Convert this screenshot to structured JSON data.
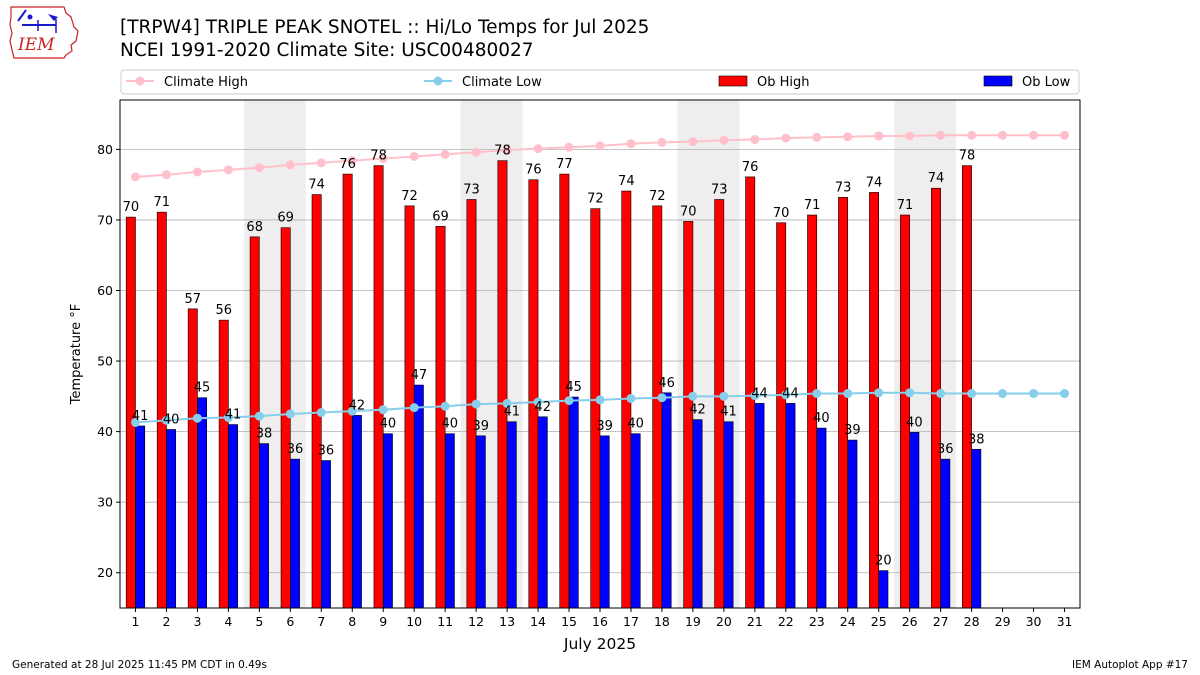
{
  "header": {
    "title_line1": "[TRPW4] TRIPLE PEAK SNOTEL :: Hi/Lo Temps for Jul 2025",
    "title_line2": "NCEI 1991-2020 Climate Site: USC00480027",
    "logo_text": "IEM"
  },
  "footer": {
    "generated": "Generated at 28 Jul 2025 11:45 PM CDT in 0.49s",
    "app": "IEM Autoplot App #17"
  },
  "colors": {
    "climate_high": "#ffc0cb",
    "climate_low": "#87ceeb",
    "ob_high": "#ff0000",
    "ob_low": "#0000ff",
    "weekend_shade": "#eeeeee",
    "grid": "#b0b0b0",
    "logo_red": "#cc2222",
    "logo_blue": "#1a1acc"
  },
  "chart_data": {
    "type": "bar",
    "xlabel": "July 2025",
    "ylabel": "Temperature °F",
    "ylim": [
      15,
      87
    ],
    "yticks": [
      20,
      30,
      40,
      50,
      60,
      70,
      80
    ],
    "grid": "horizontal",
    "legend_position": "top",
    "days": [
      1,
      2,
      3,
      4,
      5,
      6,
      7,
      8,
      9,
      10,
      11,
      12,
      13,
      14,
      15,
      16,
      17,
      18,
      19,
      20,
      21,
      22,
      23,
      24,
      25,
      26,
      27,
      28,
      29,
      30,
      31
    ],
    "shaded_day_ranges": [
      [
        5,
        6
      ],
      [
        12,
        13
      ],
      [
        19,
        20
      ],
      [
        26,
        27
      ]
    ],
    "series": [
      {
        "name": "Ob High",
        "kind": "bar",
        "values": [
          70.4,
          71.1,
          57.4,
          55.8,
          67.6,
          68.9,
          73.6,
          76.5,
          77.7,
          72.0,
          69.1,
          72.9,
          78.4,
          75.7,
          76.5,
          71.6,
          74.1,
          72.0,
          69.8,
          72.9,
          76.1,
          69.6,
          70.7,
          73.2,
          73.9,
          70.7,
          74.5,
          77.7
        ],
        "labels": [
          "70",
          "71",
          "57",
          "56",
          "68",
          "69",
          "74",
          "76",
          "78",
          "72",
          "69",
          "73",
          "78",
          "76",
          "77",
          "72",
          "74",
          "72",
          "70",
          "73",
          "76",
          "70",
          "71",
          "73",
          "74",
          "71",
          "74",
          "78"
        ]
      },
      {
        "name": "Ob Low",
        "kind": "bar",
        "values": [
          40.8,
          40.3,
          44.8,
          41.0,
          38.3,
          36.1,
          35.9,
          42.3,
          39.7,
          46.6,
          39.7,
          39.4,
          41.4,
          42.1,
          44.9,
          39.4,
          39.7,
          45.5,
          41.7,
          41.4,
          44.0,
          44.0,
          40.5,
          38.8,
          20.3,
          39.9,
          36.1,
          37.5
        ],
        "labels": [
          "41",
          "40",
          "45",
          "41",
          "38",
          "36",
          "36",
          "42",
          "40",
          "47",
          "40",
          "39",
          "41",
          "42",
          "45",
          "39",
          "40",
          "46",
          "42",
          "41",
          "44",
          "44",
          "40",
          "39",
          "20",
          "40",
          "36",
          "38"
        ]
      },
      {
        "name": "Climate High",
        "kind": "line",
        "values": [
          76.1,
          76.4,
          76.8,
          77.1,
          77.4,
          77.8,
          78.1,
          78.4,
          78.7,
          79.0,
          79.3,
          79.6,
          79.9,
          80.1,
          80.3,
          80.5,
          80.8,
          81.0,
          81.1,
          81.3,
          81.4,
          81.6,
          81.7,
          81.8,
          81.9,
          81.9,
          82.0,
          82.0,
          82.0,
          82.0,
          82.0
        ]
      },
      {
        "name": "Climate Low",
        "kind": "line",
        "values": [
          41.3,
          41.6,
          41.9,
          42.0,
          42.2,
          42.5,
          42.7,
          42.9,
          43.1,
          43.4,
          43.6,
          43.9,
          44.0,
          44.2,
          44.4,
          44.5,
          44.7,
          44.8,
          45.0,
          45.0,
          45.1,
          45.2,
          45.4,
          45.4,
          45.5,
          45.5,
          45.4,
          45.4,
          45.4,
          45.4,
          45.4
        ]
      }
    ]
  }
}
